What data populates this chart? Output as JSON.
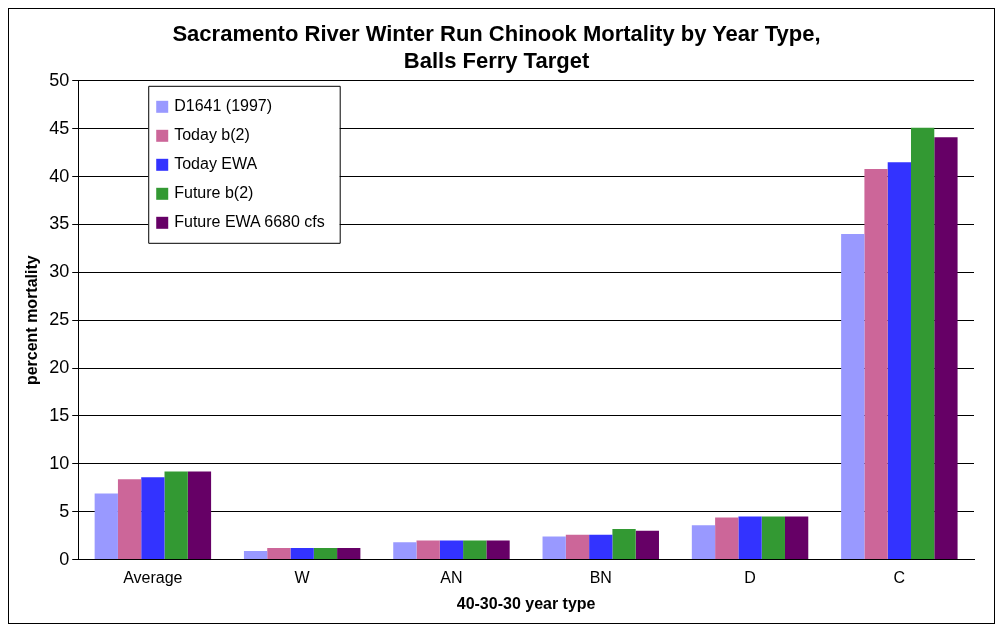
{
  "chart_data": {
    "type": "bar",
    "title": "Sacramento River Winter Run Chinook Mortality by Year Type, Balls Ferry Target",
    "xlabel": "40-30-30 year type",
    "ylabel": "percent mortality",
    "categories": [
      "Average",
      "W",
      "AN",
      "BN",
      "D",
      "C"
    ],
    "series": [
      {
        "name": "D1641 (1997)",
        "color": "#9999ff",
        "values": [
          6.9,
          0.9,
          1.8,
          2.4,
          3.6,
          34
        ]
      },
      {
        "name": "Today b(2)",
        "color": "#cc6699",
        "values": [
          8.4,
          1.2,
          2.0,
          2.6,
          4.4,
          40.8
        ]
      },
      {
        "name": "Today EWA",
        "color": "#3333ff",
        "values": [
          8.6,
          1.2,
          2.0,
          2.6,
          4.5,
          41.5
        ]
      },
      {
        "name": "Future b(2)",
        "color": "#339933",
        "values": [
          9.2,
          1.2,
          2.0,
          3.2,
          4.5,
          45.1
        ]
      },
      {
        "name": "Future EWA 6680 cfs",
        "color": "#660066",
        "values": [
          9.2,
          1.2,
          2.0,
          3.0,
          4.5,
          44.1
        ]
      }
    ],
    "ylim": [
      0,
      50
    ],
    "yticks": [
      0,
      5,
      10,
      15,
      20,
      25,
      30,
      35,
      40,
      45,
      50
    ],
    "grid": "y",
    "legend": "top left"
  }
}
